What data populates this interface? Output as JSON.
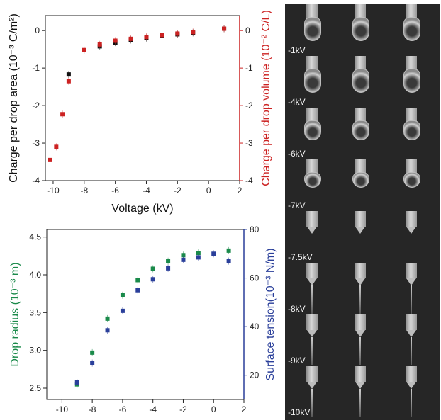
{
  "chart_data": [
    {
      "type": "scatter",
      "xlabel": "Voltage (kV)",
      "ylabel": "Charge per drop area (10⁻³ C/m²)",
      "ylabel_right": "Charge per drop volume (10⁻² C/L)",
      "xlim": [
        -10.5,
        2
      ],
      "ylim": [
        -4,
        0.4
      ],
      "ylim_right": [
        -4,
        0.4
      ],
      "x_ticks": [
        -10,
        -8,
        -6,
        -4,
        -2,
        0,
        2
      ],
      "y_ticks": [
        -4,
        -3,
        -2,
        -1,
        0
      ],
      "y_ticks_right": [
        -4,
        -3,
        -2,
        -1,
        0
      ],
      "series": [
        {
          "axis": "left",
          "color": "#111111",
          "x": [
            -9,
            -7,
            -6,
            -5,
            -4,
            -3,
            -2,
            -1,
            1
          ],
          "y": [
            -1.17,
            -0.42,
            -0.32,
            -0.25,
            -0.2,
            -0.14,
            -0.1,
            -0.06,
            0.05
          ]
        },
        {
          "axis": "right",
          "color": "#cc2222",
          "x": [
            -10.2,
            -9.8,
            -9.4,
            -9,
            -8,
            -7,
            -6,
            -5,
            -4,
            -3,
            -2,
            -1,
            1
          ],
          "y": [
            -3.45,
            -3.1,
            -2.23,
            -1.35,
            -0.52,
            -0.37,
            -0.27,
            -0.22,
            -0.17,
            -0.12,
            -0.08,
            -0.04,
            0.05
          ]
        }
      ],
      "colors": {
        "left_axis": "#111111",
        "right_axis": "#cc2222"
      }
    },
    {
      "type": "scatter",
      "xlabel": "Voltage (kV)",
      "ylabel": "Drop radius (10⁻³ m)",
      "ylabel_right": "Surface tension(10⁻³ N/m)",
      "xlim": [
        -11,
        2
      ],
      "ylim": [
        2.35,
        4.6
      ],
      "ylim_right": [
        10,
        80
      ],
      "x_ticks": [
        -10,
        -8,
        -6,
        -4,
        -2,
        0,
        2
      ],
      "y_ticks": [
        2.5,
        3.0,
        3.5,
        4.0,
        4.5
      ],
      "y_ticks_right": [
        20,
        40,
        60,
        80
      ],
      "series": [
        {
          "axis": "left",
          "color": "#1a8a4a",
          "x": [
            -9,
            -8,
            -7,
            -6,
            -5,
            -4,
            -3,
            -2,
            -1,
            1
          ],
          "y": [
            2.55,
            2.97,
            3.42,
            3.73,
            3.93,
            4.08,
            4.18,
            4.26,
            4.29,
            4.32
          ]
        },
        {
          "axis": "right",
          "color": "#2a3f9a",
          "x": [
            -9,
            -8,
            -7,
            -6,
            -5,
            -4,
            -3,
            -2,
            -1,
            0,
            1
          ],
          "y": [
            17,
            25,
            38.5,
            46.5,
            55,
            59.5,
            64,
            67.5,
            68.5,
            70,
            67
          ]
        }
      ],
      "colors": {
        "left_axis": "#1a8a4a",
        "right_axis": "#2a3f9a"
      }
    }
  ],
  "photos": {
    "rows": [
      {
        "label": "-1kV",
        "shape": "drop-long"
      },
      {
        "label": "-4kV",
        "shape": "drop-long"
      },
      {
        "label": "-6kV",
        "shape": "drop-mid"
      },
      {
        "label": "-7kV",
        "shape": "drop-short"
      },
      {
        "label": "-7.5kV",
        "shape": "cone"
      },
      {
        "label": "-8kV",
        "shape": "jet"
      },
      {
        "label": "-9kV",
        "shape": "jet"
      },
      {
        "label": "-10kV",
        "shape": "jet"
      }
    ]
  }
}
